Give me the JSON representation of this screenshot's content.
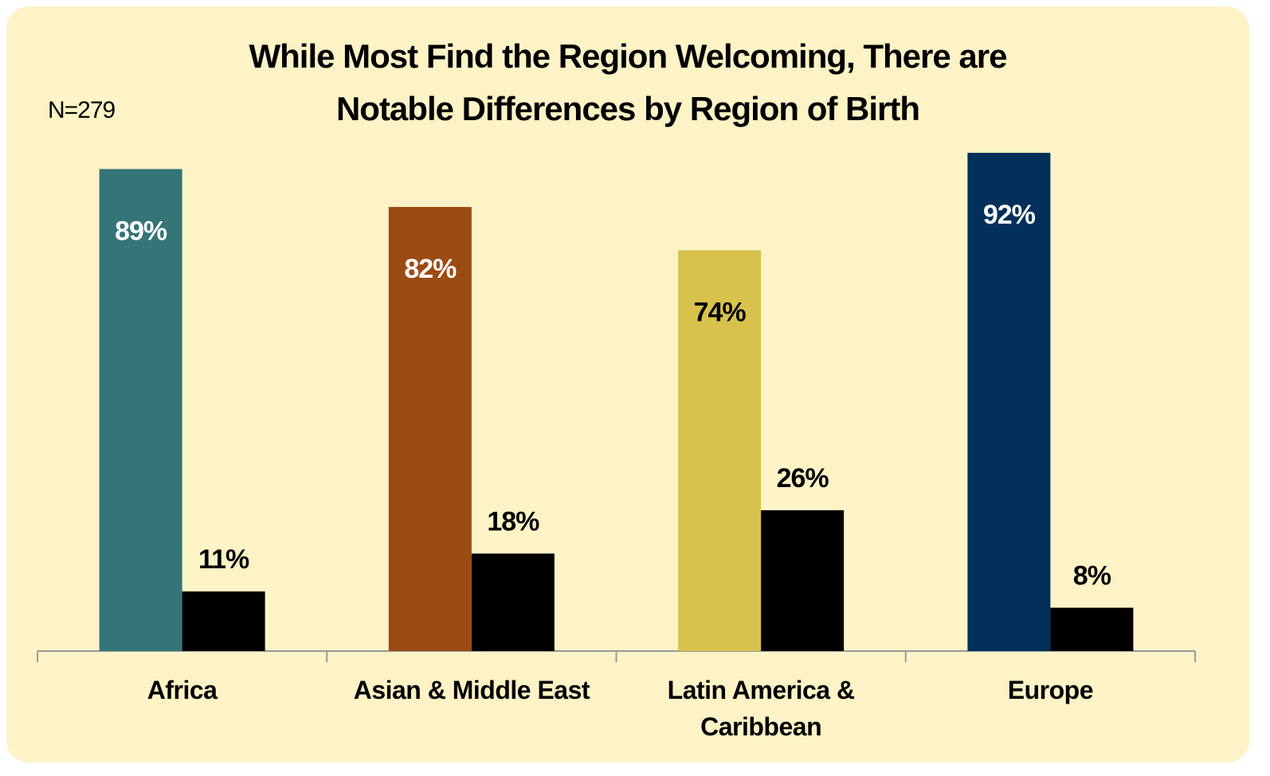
{
  "chart_data": {
    "type": "bar",
    "title": "While Most Find the Region Welcoming, There are Notable Differences by Region of Birth",
    "subtitle": "N=279",
    "categories": [
      "Africa",
      "Asian & Middle East",
      "Latin America & Caribbean",
      "Europe"
    ],
    "series": [
      {
        "colors": [
          "#347577",
          "#9c4b12",
          "#d8c24c",
          "#03305a"
        ],
        "label_colors": [
          "#ffffff",
          "#ffffff",
          "#000000",
          "#ffffff"
        ],
        "values": [
          89,
          82,
          74,
          92
        ],
        "value_labels": [
          "89%",
          "82%",
          "74%",
          "92%"
        ]
      },
      {
        "color": "#000000",
        "values": [
          11,
          18,
          26,
          8
        ],
        "value_labels": [
          "11%",
          "18%",
          "26%",
          "8%"
        ]
      }
    ]
  }
}
